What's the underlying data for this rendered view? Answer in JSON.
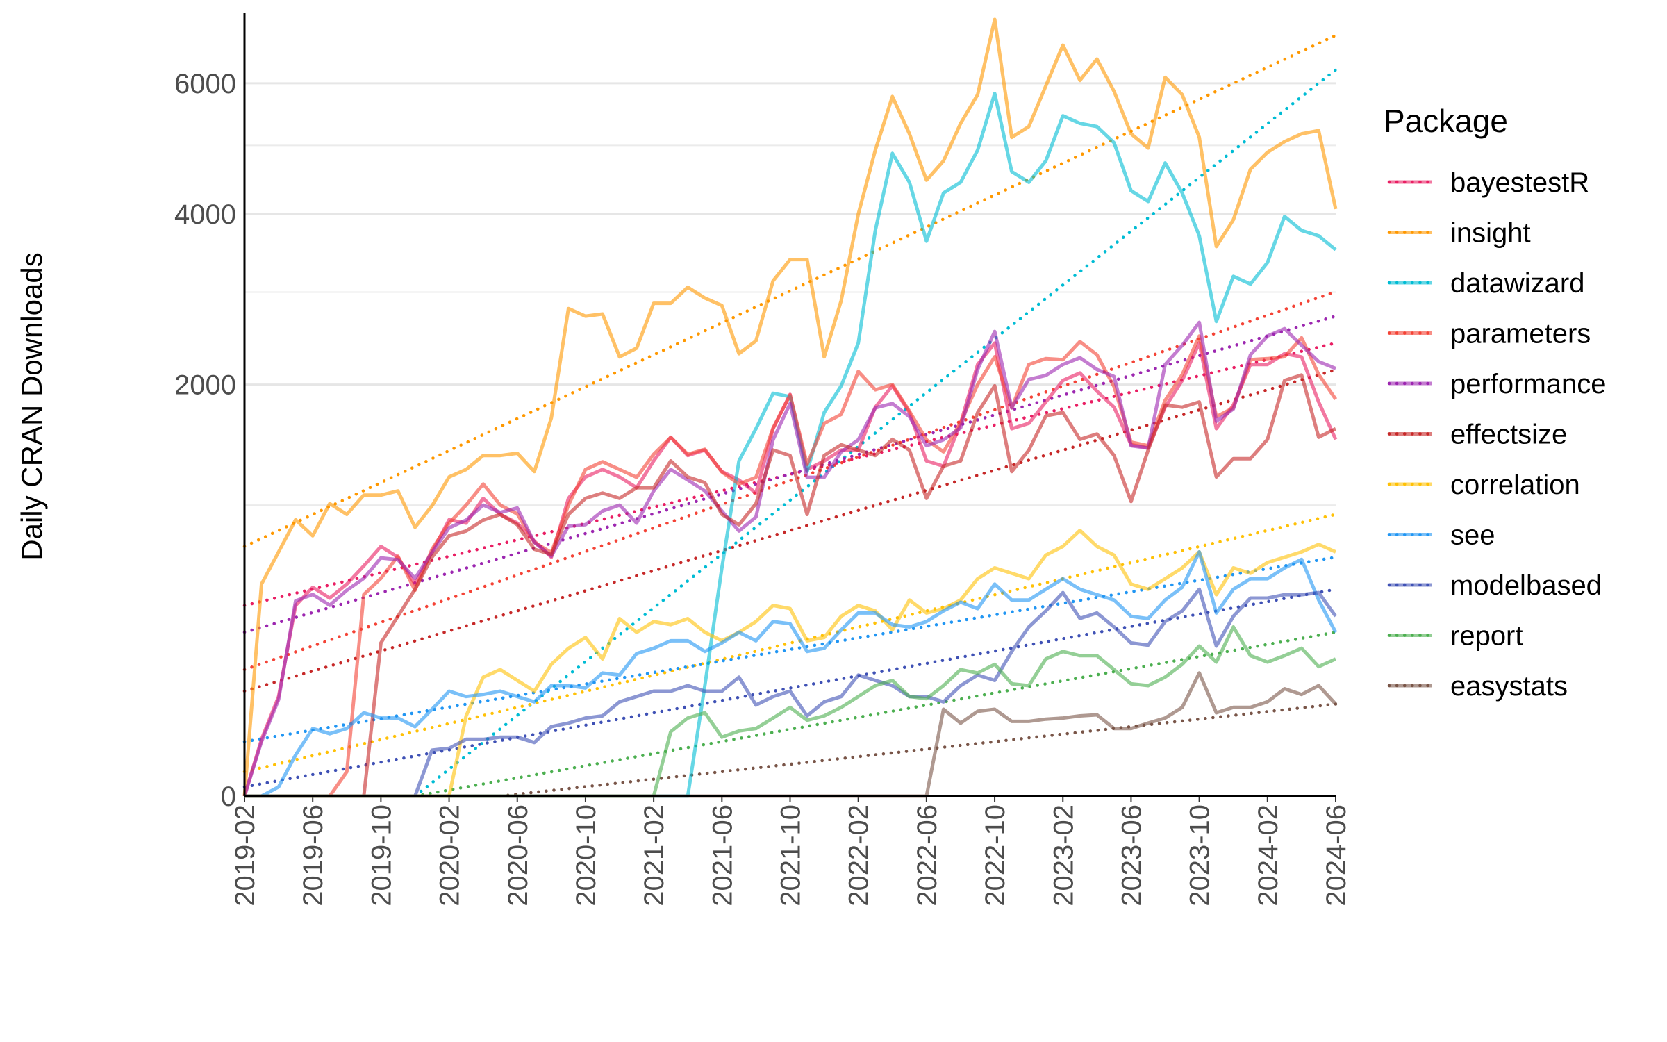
{
  "chart_data": {
    "type": "line",
    "ylabel": "Daily CRAN Downloads",
    "legend_title": "Package",
    "legend": "right",
    "yscale": "sqrt",
    "ylim": [
      0,
      7200
    ],
    "yticks": [
      0,
      2000,
      4000,
      6000
    ],
    "yminor": [
      1000,
      3000,
      5000
    ],
    "grid": true,
    "x": [
      "2019-02",
      "2019-03",
      "2019-04",
      "2019-05",
      "2019-06",
      "2019-07",
      "2019-08",
      "2019-09",
      "2019-10",
      "2019-11",
      "2019-12",
      "2020-01",
      "2020-02",
      "2020-03",
      "2020-04",
      "2020-05",
      "2020-06",
      "2020-07",
      "2020-08",
      "2020-09",
      "2020-10",
      "2020-11",
      "2020-12",
      "2021-01",
      "2021-02",
      "2021-03",
      "2021-04",
      "2021-05",
      "2021-06",
      "2021-07",
      "2021-08",
      "2021-09",
      "2021-10",
      "2021-11",
      "2021-12",
      "2022-01",
      "2022-02",
      "2022-03",
      "2022-04",
      "2022-05",
      "2022-06",
      "2022-07",
      "2022-08",
      "2022-09",
      "2022-10",
      "2022-11",
      "2022-12",
      "2023-01",
      "2023-02",
      "2023-03",
      "2023-04",
      "2023-05",
      "2023-06",
      "2023-07",
      "2023-08",
      "2023-09",
      "2023-10",
      "2023-11",
      "2023-12",
      "2024-01",
      "2024-02",
      "2024-03",
      "2024-04",
      "2024-05",
      "2024-06"
    ],
    "xticks": [
      "2019-02",
      "2019-06",
      "2019-10",
      "2020-02",
      "2020-06",
      "2020-10",
      "2021-02",
      "2021-06",
      "2021-10",
      "2022-02",
      "2022-06",
      "2022-10",
      "2023-02",
      "2023-06",
      "2023-10",
      "2024-02",
      "2024-06"
    ],
    "series": [
      {
        "name": "bayestestR",
        "color": "#e91e63",
        "values": [
          0,
          38,
          117,
          429,
          515,
          463,
          531,
          626,
          736,
          674,
          531,
          704,
          902,
          880,
          1047,
          937,
          880,
          768,
          674,
          1047,
          1203,
          1260,
          1203,
          1123,
          1327,
          1521,
          1370,
          1414,
          1244,
          1180,
          1085,
          1594,
          1906,
          1260,
          1327,
          1414,
          1414,
          1786,
          1988,
          1737,
          1327,
          1286,
          1641,
          2200,
          2424,
          1594,
          1641,
          1835,
          2040,
          2115,
          1936,
          1786,
          1458,
          1432,
          1786,
          2040,
          2424,
          1594,
          1806,
          2200,
          2200,
          2312,
          2278,
          1835,
          1503
        ],
        "trend": {
          "x": [
            "2019-02",
            "2024-06"
          ],
          "values": [
            429,
            2424
          ]
        }
      },
      {
        "name": "insight",
        "color": "#ff9800",
        "values": [
          0,
          531,
          704,
          902,
          800,
          1010,
          937,
          1070,
          1070,
          1100,
          853,
          995,
          1203,
          1260,
          1370,
          1370,
          1388,
          1244,
          1689,
          2807,
          2720,
          2745,
          2278,
          2370,
          2868,
          2868,
          3058,
          2930,
          2842,
          2312,
          2448,
          3135,
          3400,
          3400,
          2278,
          2900,
          4000,
          4928,
          5780,
          5180,
          4480,
          4765,
          5345,
          5810,
          7123,
          5126,
          5294,
          5957,
          6660,
          6050,
          6415,
          5866,
          5180,
          4960,
          6100,
          5810,
          5126,
          3567,
          3923,
          4640,
          4895,
          5058,
          5180,
          5230,
          4070
        ],
        "trend": {
          "x": [
            "2019-02",
            "2024-06"
          ],
          "values": [
            736,
            6834
          ]
        }
      },
      {
        "name": "datawizard",
        "color": "#00bcd4",
        "values": [
          0,
          0,
          0,
          0,
          0,
          0,
          0,
          0,
          0,
          0,
          0,
          0,
          0,
          0,
          0,
          0,
          0,
          0,
          0,
          0,
          0,
          0,
          0,
          0,
          0,
          0,
          0,
          144,
          615,
          1327,
          1594,
          1916,
          1885,
          1244,
          1737,
          1988,
          2424,
          3778,
          4878,
          4450,
          3636,
          4296,
          4450,
          4928,
          5830,
          4605,
          4450,
          4765,
          5465,
          5345,
          5294,
          5042,
          4328,
          4176,
          4734,
          4296,
          3707,
          2660,
          3190,
          3096,
          3362,
          3968,
          3778,
          3707,
          3525
        ],
        "trend": {
          "x": [
            "2019-12",
            "2024-06"
          ],
          "values": [
            0,
            6229
          ]
        }
      },
      {
        "name": "parameters",
        "color": "#f44336",
        "values": [
          0,
          0,
          0,
          0,
          0,
          0,
          7,
          480,
          560,
          680,
          500,
          720,
          880,
          1000,
          1150,
          1000,
          940,
          760,
          700,
          1000,
          1260,
          1320,
          1260,
          1200,
          1380,
          1520,
          1380,
          1420,
          1240,
          1150,
          1200,
          1600,
          1900,
          1300,
          1640,
          1720,
          2130,
          1950,
          2000,
          1750,
          1500,
          1400,
          1650,
          2000,
          2280,
          1780,
          2200,
          2260,
          2250,
          2440,
          2300,
          1980,
          1480,
          1450,
          1850,
          2100,
          2500,
          1700,
          1780,
          2250,
          2260,
          2280,
          2480,
          2100,
          1860
        ],
        "trend": {
          "x": [
            "2019-02",
            "2024-06"
          ],
          "values": [
            189,
            3005
          ]
        }
      },
      {
        "name": "performance",
        "color": "#9c27b0",
        "values": [
          0,
          35,
          110,
          450,
          480,
          430,
          500,
          560,
          670,
          660,
          560,
          700,
          850,
          900,
          1000,
          950,
          980,
          760,
          680,
          860,
          870,
          960,
          1000,
          880,
          1100,
          1260,
          1180,
          1100,
          960,
          830,
          920,
          1500,
          1820,
          1200,
          1200,
          1400,
          1500,
          1780,
          1820,
          1700,
          1450,
          1500,
          1600,
          2150,
          2550,
          1780,
          2050,
          2090,
          2200,
          2270,
          2150,
          2080,
          1450,
          1430,
          2200,
          2400,
          2650,
          1660,
          1770,
          2300,
          2500,
          2580,
          2400,
          2230,
          2160
        ],
        "trend": {
          "x": [
            "2019-02",
            "2024-06"
          ],
          "values": [
            317,
            2720
          ]
        }
      },
      {
        "name": "effectsize",
        "color": "#c62828",
        "values": [
          0,
          0,
          0,
          0,
          0,
          0,
          0,
          0,
          277,
          382,
          505,
          674,
          800,
          830,
          900,
          937,
          870,
          720,
          690,
          937,
          1047,
          1085,
          1047,
          1123,
          1123,
          1327,
          1203,
          1160,
          937,
          870,
          1010,
          1414,
          1370,
          937,
          1370,
          1458,
          1414,
          1370,
          1503,
          1414,
          1047,
          1286,
          1327,
          1737,
          1988,
          1244,
          1414,
          1708,
          1737,
          1503,
          1548,
          1370,
          1025,
          1414,
          1806,
          1786,
          1835,
          1203,
          1345,
          1345,
          1503,
          2040,
          2094,
          1521,
          1594
        ],
        "trend": {
          "x": [
            "2019-02",
            "2024-06"
          ],
          "values": [
            130,
            2146
          ]
        }
      },
      {
        "name": "correlation",
        "color": "#ffc107",
        "values": [
          0,
          0,
          0,
          0,
          0,
          0,
          0,
          0,
          0,
          0,
          0,
          0,
          0,
          76,
          167,
          189,
          158,
          130,
          205,
          258,
          297,
          222,
          372,
          317,
          360,
          347,
          372,
          317,
          285,
          317,
          360,
          429,
          415,
          285,
          297,
          382,
          429,
          405,
          326,
          454,
          396,
          415,
          454,
          558,
          615,
          586,
          558,
          686,
          736,
          834,
          736,
          686,
          531,
          505,
          558,
          615,
          704,
          479,
          615,
          586,
          644,
          674,
          704,
          748,
          704
        ],
        "trend": {
          "x": [
            "2019-02",
            "2024-06"
          ],
          "values": [
            7,
            937
          ]
        }
      },
      {
        "name": "see",
        "color": "#2196f3",
        "values": [
          0,
          0,
          1,
          20,
          54,
          46,
          54,
          82,
          72,
          72,
          57,
          89,
          130,
          117,
          122,
          130,
          117,
          105,
          144,
          144,
          138,
          179,
          173,
          240,
          258,
          285,
          285,
          247,
          277,
          317,
          285,
          360,
          351,
          247,
          258,
          326,
          396,
          396,
          347,
          338,
          360,
          405,
          444,
          415,
          531,
          454,
          454,
          505,
          558,
          505,
          479,
          454,
          382,
          372,
          454,
          515,
          704,
          396,
          505,
          558,
          558,
          615,
          662,
          454,
          317
        ],
        "trend": {
          "x": [
            "2019-02",
            "2024-06"
          ],
          "values": [
            35,
            674
          ]
        }
      },
      {
        "name": "modelbased",
        "color": "#3f51b5",
        "values": [
          0,
          0,
          0,
          0,
          0,
          0,
          0,
          0,
          0,
          0,
          0,
          25,
          27,
          38,
          38,
          41,
          41,
          34,
          57,
          63,
          72,
          76,
          105,
          117,
          130,
          130,
          144,
          130,
          130,
          167,
          98,
          117,
          130,
          76,
          105,
          117,
          173,
          158,
          144,
          117,
          117,
          105,
          144,
          173,
          158,
          247,
          338,
          405,
          489,
          373,
          396,
          338,
          277,
          269,
          360,
          405,
          505,
          266,
          382,
          463,
          463,
          479,
          479,
          489,
          382
        ],
        "trend": {
          "x": [
            "2019-02",
            "2024-06"
          ],
          "values": [
            1,
            505
          ]
        }
      },
      {
        "name": "report",
        "color": "#4caf50",
        "values": [
          0,
          0,
          0,
          0,
          0,
          0,
          0,
          0,
          0,
          0,
          0,
          0,
          0,
          0,
          0,
          0,
          0,
          0,
          0,
          0,
          0,
          0,
          0,
          0,
          0,
          49,
          72,
          82,
          41,
          50,
          54,
          72,
          93,
          68,
          76,
          93,
          117,
          144,
          158,
          117,
          112,
          144,
          189,
          179,
          205,
          149,
          144,
          222,
          247,
          233,
          233,
          189,
          149,
          144,
          167,
          205,
          266,
          212,
          338,
          233,
          212,
          233,
          258,
          198,
          222
        ],
        "trend": {
          "x": [
            "2019-12",
            "2024-06"
          ],
          "values": [
            0,
            317
          ]
        }
      },
      {
        "name": "easystats",
        "color": "#795548",
        "values": [
          0,
          0,
          0,
          0,
          0,
          0,
          0,
          0,
          0,
          0,
          0,
          0,
          0,
          0,
          0,
          0,
          0,
          0,
          0,
          0,
          0,
          0,
          0,
          0,
          0,
          0,
          0,
          0,
          0,
          0,
          0,
          0,
          0,
          0,
          0,
          0,
          0,
          0,
          0,
          0,
          0,
          89,
          63,
          85,
          89,
          66,
          66,
          70,
          72,
          76,
          78,
          54,
          54,
          63,
          72,
          93,
          179,
          82,
          93,
          93,
          105,
          136,
          122,
          144,
          100
        ],
        "trend": {
          "x": [
            "2020-05",
            "2024-06"
          ],
          "values": [
            0,
            100
          ]
        }
      }
    ]
  }
}
